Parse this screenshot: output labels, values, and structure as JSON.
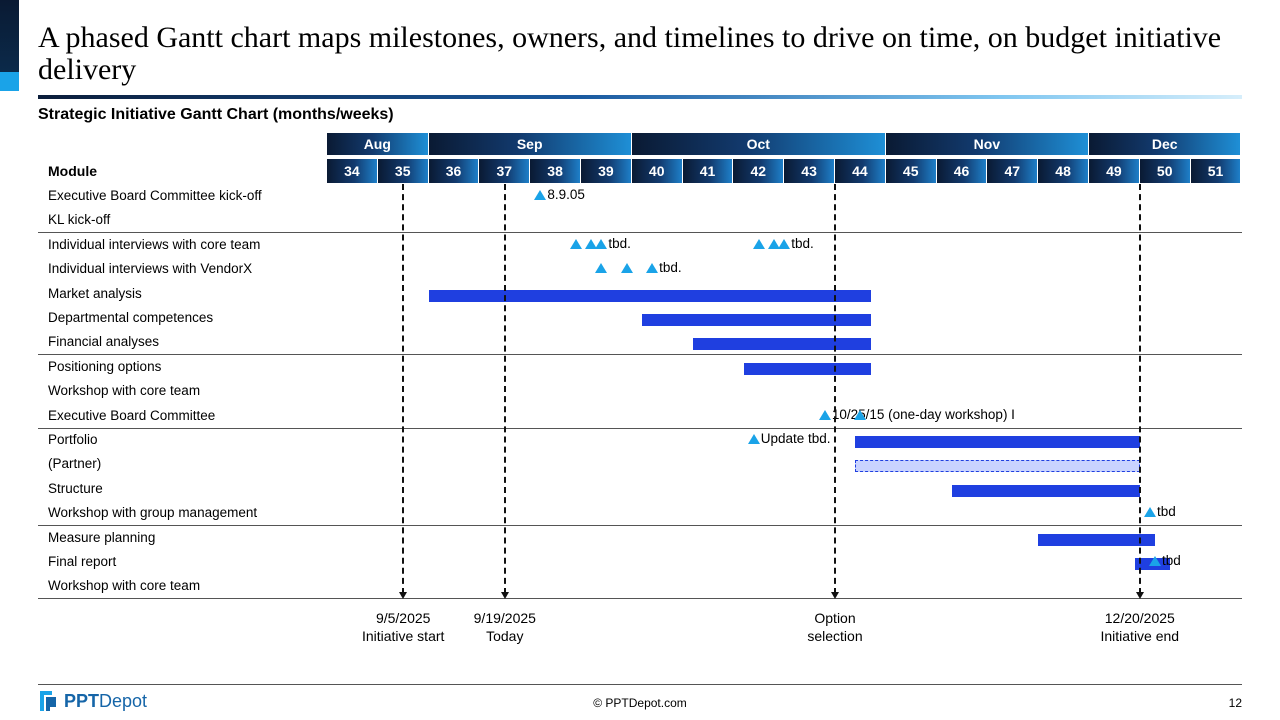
{
  "title": "A phased Gantt chart maps milestones, owners, and timelines to drive on time, on budget initiative delivery",
  "subtitle": "Strategic Initiative Gantt Chart (months/weeks)",
  "footer": {
    "copyright": "© PPTDepot.com",
    "page_number": "12",
    "logo_ppt": "PPT",
    "logo_depot": "Depot"
  },
  "colors": {
    "bar": "#1f3fe0",
    "milestone": "#1aa3e8",
    "header_dark": "#0a1a33",
    "header_light": "#1e8fd6"
  },
  "chart_data": {
    "type": "gantt",
    "title": "Strategic Initiative Gantt Chart (months/weeks)",
    "row_header": "Module",
    "months": [
      {
        "name": "Aug",
        "start_week": 34,
        "end_week": 35
      },
      {
        "name": "Sep",
        "start_week": 36,
        "end_week": 39
      },
      {
        "name": "Oct",
        "start_week": 40,
        "end_week": 44
      },
      {
        "name": "Nov",
        "start_week": 45,
        "end_week": 48
      },
      {
        "name": "Dec",
        "start_week": 49,
        "end_week": 51
      }
    ],
    "weeks": [
      "34",
      "35",
      "36",
      "37",
      "38",
      "39",
      "40",
      "41",
      "42",
      "43",
      "44",
      "45",
      "46",
      "47",
      "48",
      "49",
      "50",
      "51"
    ],
    "rows": [
      "Executive Board Committee kick-off",
      "KL kick-off",
      "Individual interviews with core team",
      "Individual interviews with VendorX",
      "Market analysis",
      "Departmental competences",
      "Financial analyses",
      "Positioning options",
      "Workshop with core team",
      "Executive Board Committee",
      "Portfolio",
      "(Partner)",
      "Structure",
      "Workshop with group management",
      "Measure planning",
      "Final report",
      "Workshop with core team"
    ],
    "group_separators_after_row": [
      1,
      6,
      9,
      13
    ],
    "bars": [
      {
        "row": 4,
        "start_week": 36.0,
        "end_week": 44.7,
        "style": "solid"
      },
      {
        "row": 5,
        "start_week": 40.2,
        "end_week": 44.7,
        "style": "solid"
      },
      {
        "row": 6,
        "start_week": 41.2,
        "end_week": 44.7,
        "style": "solid"
      },
      {
        "row": 7,
        "start_week": 42.2,
        "end_week": 44.7,
        "style": "solid"
      },
      {
        "row": 10,
        "start_week": 44.4,
        "end_week": 50.0,
        "style": "solid"
      },
      {
        "row": 11,
        "start_week": 44.4,
        "end_week": 50.0,
        "style": "dashed"
      },
      {
        "row": 12,
        "start_week": 46.3,
        "end_week": 50.0,
        "style": "solid"
      },
      {
        "row": 14,
        "start_week": 48.0,
        "end_week": 50.3,
        "style": "solid"
      },
      {
        "row": 15,
        "start_week": 49.9,
        "end_week": 50.6,
        "style": "solid"
      }
    ],
    "milestones": [
      {
        "row": 0,
        "weeks": [
          38.2
        ],
        "label": "8.9.05"
      },
      {
        "row": 2,
        "weeks": [
          38.9,
          39.2,
          39.4
        ],
        "label": "tbd."
      },
      {
        "row": 2,
        "weeks": [
          42.5,
          42.8,
          43.0
        ],
        "label": "tbd."
      },
      {
        "row": 3,
        "weeks": [
          39.4,
          39.9,
          40.4
        ],
        "label": "tbd."
      },
      {
        "row": 9,
        "weeks": [
          43.8
        ],
        "label": "10/25/15 (one-day workshop) I"
      },
      {
        "row": 9,
        "weeks": [
          44.5
        ],
        "label": ""
      },
      {
        "row": 10,
        "weeks": [
          42.4
        ],
        "label": "Update tbd."
      },
      {
        "row": 13,
        "weeks": [
          50.2
        ],
        "label": "tbd"
      },
      {
        "row": 15,
        "weeks": [
          50.3
        ],
        "label": "tbd"
      }
    ],
    "markers": [
      {
        "week": 35.5,
        "date": "9/5/2025",
        "label": "Initiative start"
      },
      {
        "week": 37.5,
        "date": "9/19/2025",
        "label": "Today"
      },
      {
        "week": 44.0,
        "date": "Option",
        "label": "selection"
      },
      {
        "week": 50.0,
        "date": "12/20/2025",
        "label": "Initiative end"
      }
    ]
  }
}
